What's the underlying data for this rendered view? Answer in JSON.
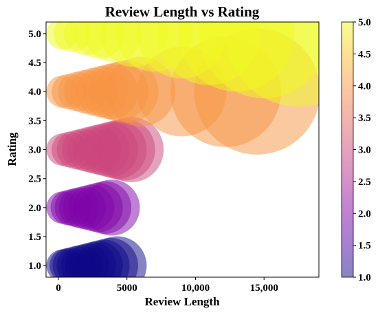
{
  "chart_data": {
    "type": "scatter",
    "title": "Review Length vs Rating",
    "xlabel": "Review Length",
    "ylabel": "Rating",
    "xlim": [
      -900,
      19000
    ],
    "ylim": [
      0.8,
      5.2
    ],
    "x_ticks": [
      0,
      5000,
      10000,
      15000
    ],
    "x_tick_labels": [
      "0",
      "5000",
      "10,000",
      "15,000"
    ],
    "y_ticks": [
      1.0,
      1.5,
      2.0,
      2.5,
      3.0,
      3.5,
      4.0,
      4.5,
      5.0
    ],
    "y_tick_labels": [
      "1.0",
      "1.5",
      "2.0",
      "2.5",
      "3.0",
      "3.5",
      "4.0",
      "4.5",
      "5.0"
    ],
    "grid": false,
    "bubble_size_encodes": "Review Length",
    "color_encodes": "Rating",
    "colorbar": {
      "colormap": "plasma",
      "range": [
        1.0,
        5.0
      ],
      "ticks": [
        1.0,
        1.5,
        2.0,
        2.5,
        3.0,
        3.5,
        4.0,
        4.5,
        5.0
      ],
      "tick_labels": [
        "1.0",
        "1.5",
        "2.0",
        "2.5",
        "3.0",
        "3.5",
        "4.0",
        "4.5",
        "5.0"
      ],
      "position": "right"
    },
    "points": [
      {
        "x": 300,
        "y": 1.0
      },
      {
        "x": 600,
        "y": 1.0
      },
      {
        "x": 900,
        "y": 1.0
      },
      {
        "x": 1300,
        "y": 1.0
      },
      {
        "x": 1700,
        "y": 1.0
      },
      {
        "x": 2100,
        "y": 1.0
      },
      {
        "x": 2500,
        "y": 1.0
      },
      {
        "x": 2900,
        "y": 1.0
      },
      {
        "x": 3300,
        "y": 1.0
      },
      {
        "x": 3800,
        "y": 1.0
      },
      {
        "x": 4300,
        "y": 1.0
      },
      {
        "x": 300,
        "y": 2.0
      },
      {
        "x": 700,
        "y": 2.0
      },
      {
        "x": 1100,
        "y": 2.0
      },
      {
        "x": 1500,
        "y": 2.0
      },
      {
        "x": 1900,
        "y": 2.0
      },
      {
        "x": 2400,
        "y": 2.0
      },
      {
        "x": 2900,
        "y": 2.0
      },
      {
        "x": 3400,
        "y": 2.0
      },
      {
        "x": 3900,
        "y": 2.0
      },
      {
        "x": 300,
        "y": 3.0
      },
      {
        "x": 800,
        "y": 3.0
      },
      {
        "x": 1300,
        "y": 3.0
      },
      {
        "x": 1800,
        "y": 3.0
      },
      {
        "x": 2300,
        "y": 3.0
      },
      {
        "x": 2800,
        "y": 3.0
      },
      {
        "x": 3300,
        "y": 3.0
      },
      {
        "x": 3800,
        "y": 3.0
      },
      {
        "x": 4300,
        "y": 3.0
      },
      {
        "x": 4800,
        "y": 3.0
      },
      {
        "x": 5300,
        "y": 3.0
      },
      {
        "x": 300,
        "y": 4.0
      },
      {
        "x": 800,
        "y": 4.0
      },
      {
        "x": 1400,
        "y": 4.0
      },
      {
        "x": 2000,
        "y": 4.0
      },
      {
        "x": 2600,
        "y": 4.0
      },
      {
        "x": 3200,
        "y": 4.0
      },
      {
        "x": 3800,
        "y": 4.0
      },
      {
        "x": 4400,
        "y": 4.0
      },
      {
        "x": 5000,
        "y": 4.0
      },
      {
        "x": 6000,
        "y": 4.0
      },
      {
        "x": 9000,
        "y": 4.0
      },
      {
        "x": 12200,
        "y": 4.0
      },
      {
        "x": 14500,
        "y": 4.0
      },
      {
        "x": 300,
        "y": 5.0
      },
      {
        "x": 1000,
        "y": 5.0
      },
      {
        "x": 2000,
        "y": 5.0
      },
      {
        "x": 3000,
        "y": 5.0
      },
      {
        "x": 4000,
        "y": 5.0
      },
      {
        "x": 5500,
        "y": 5.0
      },
      {
        "x": 7000,
        "y": 5.0
      },
      {
        "x": 9000,
        "y": 5.0
      },
      {
        "x": 11000,
        "y": 5.0
      },
      {
        "x": 13000,
        "y": 5.0
      },
      {
        "x": 15000,
        "y": 5.0
      },
      {
        "x": 17500,
        "y": 5.0
      }
    ]
  }
}
